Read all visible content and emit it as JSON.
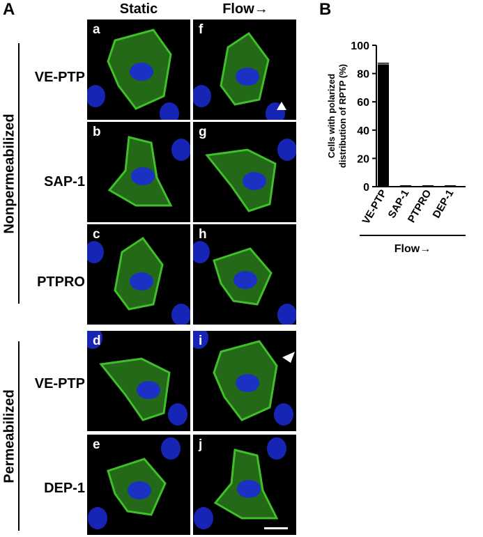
{
  "panelA_letter": "A",
  "panelB_letter": "B",
  "columns": [
    "Static",
    "Flow→"
  ],
  "groups": [
    "Nonpermeabilized",
    "Permeabilized"
  ],
  "rows": [
    "VE-PTP",
    "SAP-1",
    "PTPRO",
    "VE-PTP",
    "DEP-1"
  ],
  "sub_letters": {
    "static": [
      "a",
      "b",
      "c",
      "d",
      "e"
    ],
    "flow": [
      "f",
      "g",
      "h",
      "i",
      "j"
    ]
  },
  "colors": {
    "nucleus": "#1a2bd6",
    "membrane": "#3fbf2a",
    "background": "#000000"
  },
  "chart_data": {
    "type": "bar",
    "categories": [
      "VE-PTP",
      "SAP-1",
      "PTPRO",
      "DEP-1"
    ],
    "values": [
      86.5,
      0,
      0,
      0
    ],
    "error": [
      0.8,
      0,
      0,
      0
    ],
    "ylabel_line1": "Cells with polarized",
    "ylabel_line2": "distribution of RPTP (%)",
    "xlabel": "Flow→",
    "ylim": [
      0,
      100
    ],
    "yticks": [
      0,
      20,
      40,
      60,
      80,
      100
    ]
  }
}
